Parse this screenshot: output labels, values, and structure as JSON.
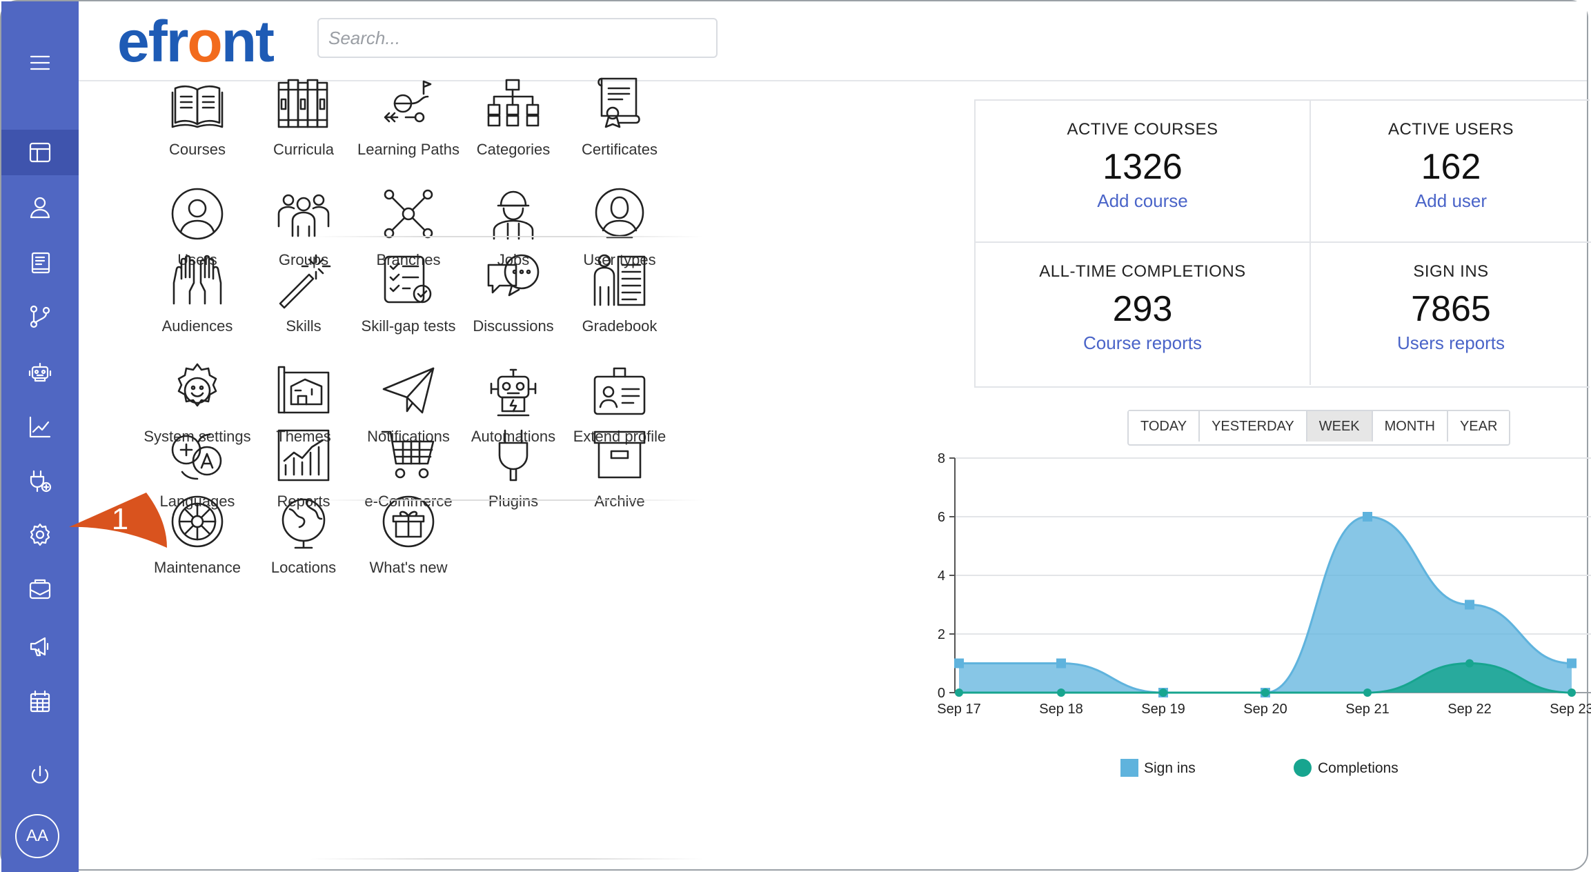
{
  "app": {
    "logo_e": "efr",
    "logo_o": "o",
    "logo_rest": "nt"
  },
  "search": {
    "placeholder": "Search..."
  },
  "sidebar": {
    "items": [
      {
        "name": "menu",
        "icon": "hamburger-icon"
      },
      {
        "name": "dashboard",
        "icon": "dashboard-icon",
        "active": true
      },
      {
        "name": "users",
        "icon": "user-icon"
      },
      {
        "name": "courses",
        "icon": "book-icon"
      },
      {
        "name": "branches",
        "icon": "branch-icon"
      },
      {
        "name": "ai",
        "icon": "robot-icon"
      },
      {
        "name": "reports",
        "icon": "chart-line-icon"
      },
      {
        "name": "plugins",
        "icon": "plug-icon"
      },
      {
        "name": "settings",
        "icon": "gear-icon"
      },
      {
        "name": "mail",
        "icon": "mail-icon"
      },
      {
        "name": "announcements",
        "icon": "megaphone-icon"
      },
      {
        "name": "calendar",
        "icon": "calendar-icon"
      },
      {
        "name": "logout",
        "icon": "power-icon"
      }
    ],
    "avatar": "AA"
  },
  "callout": {
    "number": "1",
    "color": "#d9531e"
  },
  "tiles": [
    {
      "label": "Courses",
      "icon": "book-icon"
    },
    {
      "label": "Curricula",
      "icon": "books-icon"
    },
    {
      "label": "Learning Paths",
      "icon": "path-icon"
    },
    {
      "label": "Categories",
      "icon": "categories-icon"
    },
    {
      "label": "Certificates",
      "icon": "certificate-icon"
    },
    {
      "label": "Users",
      "icon": "user-icon"
    },
    {
      "label": "Groups",
      "icon": "group-icon"
    },
    {
      "label": "Branches",
      "icon": "branches-icon"
    },
    {
      "label": "Jobs",
      "icon": "worker-icon"
    },
    {
      "label": "User types",
      "icon": "user-type-icon"
    },
    {
      "label": "Audiences",
      "icon": "hands-icon"
    },
    {
      "label": "Skills",
      "icon": "magic-wand-icon"
    },
    {
      "label": "Skill-gap tests",
      "icon": "checklist-icon"
    },
    {
      "label": "Discussions",
      "icon": "chat-icon"
    },
    {
      "label": "Gradebook",
      "icon": "gradebook-icon"
    },
    {
      "label": "System settings",
      "icon": "gear-smile-icon"
    },
    {
      "label": "Themes",
      "icon": "blueprint-icon"
    },
    {
      "label": "Notifications",
      "icon": "paper-plane-icon"
    },
    {
      "label": "Automations",
      "icon": "robot-icon"
    },
    {
      "label": "Extend profile",
      "icon": "id-card-icon"
    },
    {
      "label": "Languages",
      "icon": "translate-icon"
    },
    {
      "label": "Reports",
      "icon": "bar-chart-icon"
    },
    {
      "label": "e-Commerce",
      "icon": "cart-icon"
    },
    {
      "label": "Plugins",
      "icon": "plug-icon"
    },
    {
      "label": "Archive",
      "icon": "archive-box-icon"
    },
    {
      "label": "Maintenance",
      "icon": "maintenance-wheel-icon"
    },
    {
      "label": "Locations",
      "icon": "globe-icon"
    },
    {
      "label": "What's new",
      "icon": "gift-box-icon"
    }
  ],
  "stats": [
    {
      "title": "ACTIVE COURSES",
      "value": "1326",
      "link": "Add course"
    },
    {
      "title": "ACTIVE USERS",
      "value": "162",
      "link": "Add user"
    },
    {
      "title": "ALL-TIME COMPLETIONS",
      "value": "293",
      "link": "Course reports"
    },
    {
      "title": "SIGN INS",
      "value": "7865",
      "link": "Users reports"
    }
  ],
  "periods": [
    {
      "label": "TODAY"
    },
    {
      "label": "YESTERDAY"
    },
    {
      "label": "WEEK",
      "selected": true
    },
    {
      "label": "MONTH"
    },
    {
      "label": "YEAR"
    }
  ],
  "chart_data": {
    "type": "area",
    "x": [
      "Sep 17",
      "Sep 18",
      "Sep 19",
      "Sep 20",
      "Sep 21",
      "Sep 22",
      "Sep 23"
    ],
    "y_ticks": [
      0,
      2,
      4,
      6,
      8
    ],
    "ylim": [
      0,
      8
    ],
    "grid": true,
    "legend_position": "bottom",
    "series": [
      {
        "name": "Sign ins",
        "values": [
          1,
          1,
          0,
          0,
          6,
          3,
          1
        ],
        "color": "#5fb3dd"
      },
      {
        "name": "Completions",
        "values": [
          0,
          0,
          0,
          0,
          0,
          1,
          0
        ],
        "color": "#17a58f"
      }
    ]
  },
  "colors": {
    "sidebar": "#5067c2",
    "sidebar_active": "#3f54ad",
    "link": "#4a64c8",
    "logo_blue": "#1e5bb5",
    "logo_orange": "#f26b1d"
  }
}
